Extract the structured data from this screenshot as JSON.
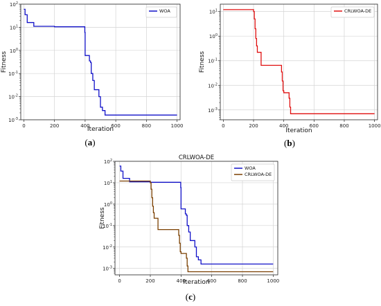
{
  "chart_data": [
    {
      "type": "line",
      "panel": "a",
      "caption": "(a)",
      "title": "",
      "xlabel": "Iteration",
      "ylabel": "Fitness",
      "xlim": [
        -20,
        1020
      ],
      "ylim_exp": [
        -3,
        2
      ],
      "yscale": "log",
      "xticks": [
        0,
        200,
        400,
        600,
        800,
        1000
      ],
      "yticks_exp": [
        2,
        1,
        0,
        -1,
        -2,
        -3
      ],
      "grid": true,
      "legend_position": "top-right",
      "series": [
        {
          "name": "WOA",
          "color": "#1010c8",
          "x": [
            0,
            8,
            22,
            35,
            65,
            200,
            385,
            398,
            400,
            420,
            428,
            435,
            440,
            450,
            460,
            480,
            490,
            500,
            513,
            530,
            550,
            1000
          ],
          "y": [
            60,
            35,
            16,
            16,
            11,
            10.5,
            10.5,
            6,
            0.6,
            0.6,
            0.35,
            0.3,
            0.1,
            0.05,
            0.02,
            0.02,
            0.01,
            0.0035,
            0.0025,
            0.0016,
            0.0016,
            0.0016
          ]
        }
      ]
    },
    {
      "type": "line",
      "panel": "b",
      "caption": "(b)",
      "title": "",
      "xlabel": "Iteration",
      "ylabel": "Fitness",
      "xlim": [
        -20,
        1020
      ],
      "ylim_exp": [
        -3.4,
        1.3
      ],
      "yscale": "log",
      "xticks": [
        0,
        200,
        400,
        600,
        800,
        1000
      ],
      "yticks_exp": [
        1,
        0,
        -1,
        -2,
        -3
      ],
      "grid": true,
      "legend_position": "top-right",
      "series": [
        {
          "name": "CRLWOA-DE",
          "color": "#e01010",
          "x": [
            0,
            190,
            200,
            205,
            210,
            215,
            220,
            225,
            240,
            250,
            380,
            385,
            390,
            395,
            400,
            430,
            435,
            440,
            445,
            450,
            1000
          ],
          "y": [
            12,
            12,
            10,
            5,
            2,
            0.8,
            0.4,
            0.22,
            0.22,
            0.065,
            0.065,
            0.035,
            0.015,
            0.006,
            0.005,
            0.005,
            0.003,
            0.0013,
            0.0007,
            0.0007,
            0.0007
          ]
        }
      ]
    },
    {
      "type": "line",
      "panel": "c",
      "caption": "(c)",
      "title": "CRLWOA-DE",
      "xlabel": "Iteration",
      "ylabel": "Fitness",
      "xlim": [
        -30,
        1030
      ],
      "ylim_exp": [
        -3.3,
        2
      ],
      "yscale": "log",
      "xticks": [
        0,
        200,
        400,
        600,
        800,
        1000
      ],
      "yticks_exp": [
        2,
        1,
        0,
        -1,
        -2,
        -3
      ],
      "grid": true,
      "legend_position": "top-right",
      "series": [
        {
          "name": "WOA",
          "color": "#1010c8",
          "x": [
            0,
            8,
            22,
            35,
            65,
            200,
            385,
            398,
            400,
            420,
            428,
            435,
            440,
            450,
            460,
            480,
            490,
            500,
            513,
            530,
            550,
            1000
          ],
          "y": [
            60,
            35,
            16,
            16,
            11,
            10.5,
            10.5,
            6,
            0.6,
            0.6,
            0.35,
            0.3,
            0.1,
            0.05,
            0.02,
            0.02,
            0.01,
            0.0035,
            0.0025,
            0.0016,
            0.0016,
            0.0016
          ]
        },
        {
          "name": "CRLWOA-DE",
          "color": "#7a3f00",
          "x": [
            0,
            190,
            200,
            205,
            210,
            215,
            220,
            225,
            240,
            250,
            380,
            385,
            390,
            395,
            400,
            430,
            435,
            440,
            445,
            450,
            1000
          ],
          "y": [
            12,
            12,
            10,
            5,
            2,
            0.8,
            0.4,
            0.22,
            0.22,
            0.065,
            0.065,
            0.035,
            0.015,
            0.006,
            0.005,
            0.005,
            0.003,
            0.0013,
            0.0007,
            0.0007,
            0.0007
          ]
        }
      ]
    }
  ]
}
